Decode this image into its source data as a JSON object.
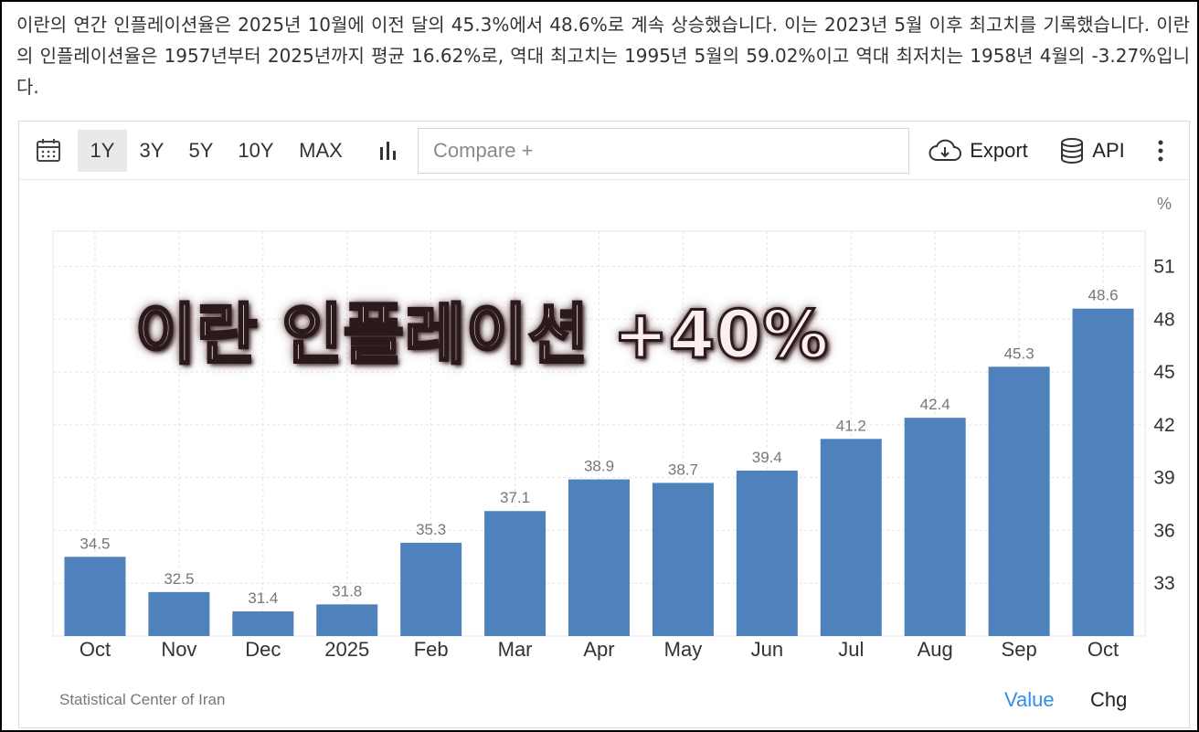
{
  "intro_text": "이란의 연간 인플레이션율은 2025년 10월에 이전 달의 45.3%에서 48.6%로 계속 상승했습니다. 이는 2023년 5월 이후 최고치를 기록했습니다. 이란의 인플레이션율은 1957년부터 2025년까지 평균 16.62%로, 역대 최고치는 1995년 5월의 59.02%이고 역대 최저치는 1958년 4월의 -3.27%입니다.",
  "toolbar": {
    "ranges": [
      "1Y",
      "3Y",
      "5Y",
      "10Y",
      "MAX"
    ],
    "active_range": "1Y",
    "compare_placeholder": "Compare +",
    "export_label": "Export",
    "api_label": "API"
  },
  "overlay_title": "이란 인플레이션 +40%",
  "source": "Statistical Center of Iran",
  "modes": {
    "value": "Value",
    "chg": "Chg",
    "active": "Value"
  },
  "colors": {
    "bar": "#4f81bd",
    "active_mode": "#2f8fe6",
    "grid": "#e4e4e4"
  },
  "icons": [
    "calendar-icon",
    "bar-chart-icon",
    "cloud-download-icon",
    "database-icon",
    "more-vert-icon"
  ],
  "chart_data": {
    "type": "bar",
    "unit": "%",
    "categories": [
      "Oct",
      "Nov",
      "Dec",
      "2025",
      "Feb",
      "Mar",
      "Apr",
      "May",
      "Jun",
      "Jul",
      "Aug",
      "Sep",
      "Oct"
    ],
    "values": [
      34.5,
      32.5,
      31.4,
      31.8,
      35.3,
      37.1,
      38.9,
      38.7,
      39.4,
      41.2,
      42.4,
      45.3,
      48.6
    ],
    "value_labels": [
      "34.5",
      "32.5",
      "31.4",
      "31.8",
      "35.3",
      "37.1",
      "38.9",
      "38.7",
      "39.4",
      "41.2",
      "42.4",
      "45.3",
      "48.6"
    ],
    "y_ticks": [
      33,
      36,
      39,
      42,
      45,
      48,
      51
    ],
    "ylim": [
      30,
      53
    ],
    "grid": true,
    "y_axis_side": "right"
  }
}
